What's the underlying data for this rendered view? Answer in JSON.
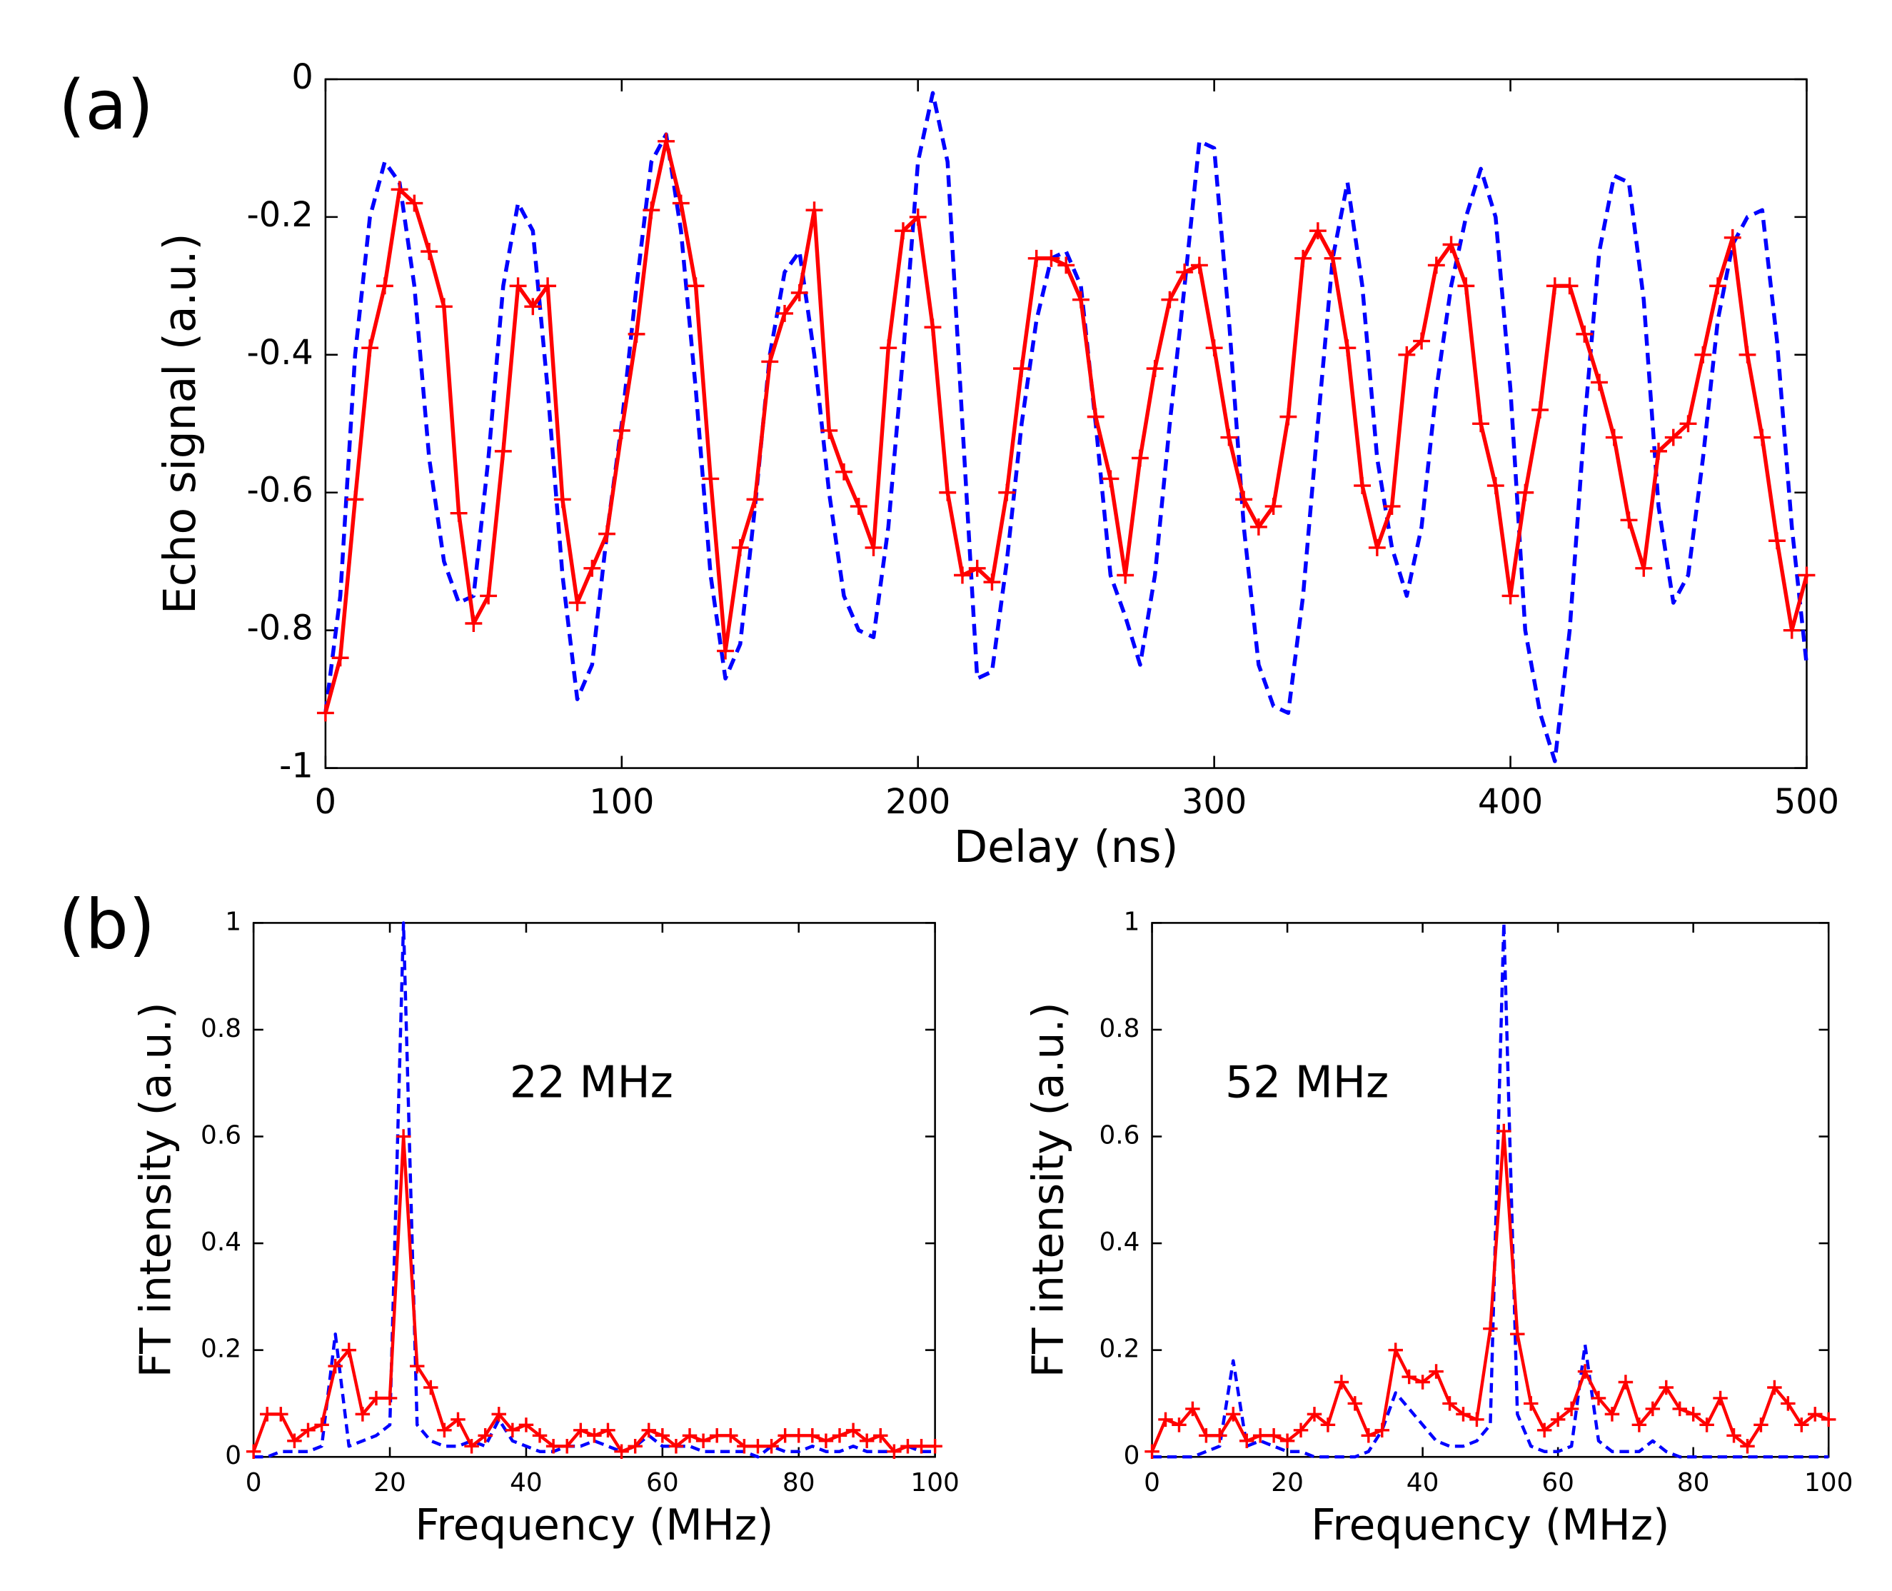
{
  "chart_data": [
    {
      "type": "line",
      "panel_label": "(a)",
      "x_label": "Delay (ns)",
      "y_label": "Echo signal (a.u.)",
      "xlim": [
        0,
        500
      ],
      "ylim": [
        -1,
        0
      ],
      "xticks": [
        0,
        100,
        200,
        300,
        400,
        500
      ],
      "yticks": [
        -1,
        -0.8,
        -0.6,
        -0.4,
        -0.2,
        0
      ],
      "x": [
        0,
        5,
        10,
        15,
        20,
        25,
        30,
        35,
        40,
        45,
        50,
        55,
        60,
        65,
        70,
        75,
        80,
        85,
        90,
        95,
        100,
        105,
        110,
        115,
        120,
        125,
        130,
        135,
        140,
        145,
        150,
        155,
        160,
        165,
        170,
        175,
        180,
        185,
        190,
        195,
        200,
        205,
        210,
        215,
        220,
        225,
        230,
        235,
        240,
        245,
        250,
        255,
        260,
        265,
        270,
        275,
        280,
        285,
        290,
        295,
        300,
        305,
        310,
        315,
        320,
        325,
        330,
        335,
        340,
        345,
        350,
        355,
        360,
        365,
        370,
        375,
        380,
        385,
        390,
        395,
        400,
        405,
        410,
        415,
        420,
        425,
        430,
        435,
        440,
        445,
        450,
        455,
        460,
        465,
        470,
        475,
        480,
        485,
        490,
        495,
        500
      ],
      "series": [
        {
          "color": "#0000ff",
          "line_style": "dashed",
          "values": [
            -0.92,
            -0.75,
            -0.4,
            -0.2,
            -0.12,
            -0.15,
            -0.3,
            -0.55,
            -0.7,
            -0.76,
            -0.75,
            -0.55,
            -0.3,
            -0.18,
            -0.22,
            -0.45,
            -0.72,
            -0.9,
            -0.85,
            -0.66,
            -0.5,
            -0.3,
            -0.12,
            -0.08,
            -0.22,
            -0.45,
            -0.72,
            -0.87,
            -0.82,
            -0.62,
            -0.4,
            -0.28,
            -0.25,
            -0.4,
            -0.6,
            -0.75,
            -0.8,
            -0.81,
            -0.65,
            -0.4,
            -0.12,
            -0.02,
            -0.12,
            -0.5,
            -0.87,
            -0.86,
            -0.7,
            -0.5,
            -0.35,
            -0.26,
            -0.25,
            -0.3,
            -0.5,
            -0.72,
            -0.78,
            -0.85,
            -0.72,
            -0.5,
            -0.3,
            -0.09,
            -0.1,
            -0.35,
            -0.65,
            -0.85,
            -0.91,
            -0.92,
            -0.75,
            -0.5,
            -0.26,
            -0.15,
            -0.3,
            -0.55,
            -0.68,
            -0.75,
            -0.65,
            -0.45,
            -0.3,
            -0.2,
            -0.13,
            -0.2,
            -0.45,
            -0.8,
            -0.92,
            -0.99,
            -0.8,
            -0.5,
            -0.25,
            -0.14,
            -0.15,
            -0.32,
            -0.62,
            -0.76,
            -0.72,
            -0.55,
            -0.35,
            -0.24,
            -0.2,
            -0.19,
            -0.38,
            -0.65,
            -0.85
          ]
        },
        {
          "color": "#ff0000",
          "line_style": "solid",
          "marker": "+",
          "values": [
            -0.92,
            -0.84,
            -0.61,
            -0.39,
            -0.3,
            -0.16,
            -0.18,
            -0.25,
            -0.33,
            -0.63,
            -0.79,
            -0.75,
            -0.54,
            -0.3,
            -0.33,
            -0.3,
            -0.61,
            -0.76,
            -0.71,
            -0.66,
            -0.51,
            -0.37,
            -0.19,
            -0.09,
            -0.18,
            -0.3,
            -0.58,
            -0.83,
            -0.68,
            -0.61,
            -0.41,
            -0.34,
            -0.31,
            -0.19,
            -0.51,
            -0.57,
            -0.62,
            -0.68,
            -0.39,
            -0.22,
            -0.2,
            -0.36,
            -0.6,
            -0.72,
            -0.71,
            -0.73,
            -0.6,
            -0.42,
            -0.26,
            -0.26,
            -0.27,
            -0.32,
            -0.49,
            -0.58,
            -0.72,
            -0.55,
            -0.42,
            -0.32,
            -0.28,
            -0.27,
            -0.39,
            -0.52,
            -0.61,
            -0.65,
            -0.62,
            -0.49,
            -0.26,
            -0.22,
            -0.26,
            -0.39,
            -0.59,
            -0.68,
            -0.62,
            -0.4,
            -0.38,
            -0.27,
            -0.24,
            -0.3,
            -0.5,
            -0.59,
            -0.75,
            -0.6,
            -0.48,
            -0.3,
            -0.3,
            -0.37,
            -0.44,
            -0.52,
            -0.64,
            -0.71,
            -0.54,
            -0.52,
            -0.5,
            -0.4,
            -0.3,
            -0.23,
            -0.4,
            -0.52,
            -0.67,
            -0.8,
            -0.72
          ]
        }
      ]
    },
    {
      "type": "line",
      "panel_label": "(b)",
      "x_label": "Frequency (MHz)",
      "y_label": "FT intensity (a.u.)",
      "xlim": [
        0,
        100
      ],
      "ylim": [
        0,
        1
      ],
      "xticks": [
        0,
        20,
        40,
        60,
        80,
        100
      ],
      "yticks": [
        0,
        0.2,
        0.4,
        0.6,
        0.8,
        1
      ],
      "annotations": [
        {
          "text": "22 MHz"
        }
      ],
      "x": [
        0,
        2,
        4,
        6,
        8,
        10,
        12,
        14,
        16,
        18,
        20,
        22,
        24,
        26,
        28,
        30,
        32,
        34,
        36,
        38,
        40,
        42,
        44,
        46,
        48,
        50,
        52,
        54,
        56,
        58,
        60,
        62,
        64,
        66,
        68,
        70,
        72,
        74,
        76,
        78,
        80,
        82,
        84,
        86,
        88,
        90,
        92,
        94,
        96,
        98,
        100
      ],
      "series": [
        {
          "color": "#0000ff",
          "line_style": "dashed",
          "values": [
            0,
            0,
            0.01,
            0.01,
            0.01,
            0.02,
            0.23,
            0.02,
            0.03,
            0.04,
            0.06,
            1.0,
            0.06,
            0.03,
            0.02,
            0.02,
            0.03,
            0.02,
            0.07,
            0.03,
            0.02,
            0.01,
            0.01,
            0.02,
            0.02,
            0.03,
            0.02,
            0.01,
            0.02,
            0.04,
            0.02,
            0.02,
            0.02,
            0.01,
            0.01,
            0.01,
            0.01,
            0,
            0.02,
            0.01,
            0.01,
            0.02,
            0.01,
            0.01,
            0.02,
            0.01,
            0.01,
            0.01,
            0.02,
            0.01,
            0.01
          ]
        },
        {
          "color": "#ff0000",
          "line_style": "solid",
          "marker": "+",
          "values": [
            0.01,
            0.08,
            0.08,
            0.03,
            0.05,
            0.06,
            0.17,
            0.2,
            0.08,
            0.11,
            0.11,
            0.6,
            0.17,
            0.13,
            0.05,
            0.07,
            0.02,
            0.04,
            0.08,
            0.05,
            0.06,
            0.04,
            0.02,
            0.02,
            0.05,
            0.04,
            0.05,
            0.01,
            0.02,
            0.05,
            0.04,
            0.02,
            0.04,
            0.03,
            0.04,
            0.04,
            0.02,
            0.02,
            0.02,
            0.04,
            0.04,
            0.04,
            0.03,
            0.04,
            0.05,
            0.03,
            0.04,
            0.01,
            0.02,
            0.02,
            0.02
          ]
        }
      ]
    },
    {
      "type": "line",
      "x_label": "Frequency (MHz)",
      "y_label": "FT intensity (a.u.)",
      "xlim": [
        0,
        100
      ],
      "ylim": [
        0,
        1
      ],
      "xticks": [
        0,
        20,
        40,
        60,
        80,
        100
      ],
      "yticks": [
        0,
        0.2,
        0.4,
        0.6,
        0.8,
        1
      ],
      "annotations": [
        {
          "text": "52 MHz"
        }
      ],
      "x": [
        0,
        2,
        4,
        6,
        8,
        10,
        12,
        14,
        16,
        18,
        20,
        22,
        24,
        26,
        28,
        30,
        32,
        34,
        36,
        38,
        40,
        42,
        44,
        46,
        48,
        50,
        52,
        54,
        56,
        58,
        60,
        62,
        64,
        66,
        68,
        70,
        72,
        74,
        76,
        78,
        80,
        82,
        84,
        86,
        88,
        90,
        92,
        94,
        96,
        98,
        100
      ],
      "series": [
        {
          "color": "#0000ff",
          "line_style": "dashed",
          "values": [
            0,
            0,
            0,
            0,
            0.01,
            0.02,
            0.18,
            0.02,
            0.03,
            0.02,
            0.01,
            0.01,
            0,
            0,
            0,
            0,
            0.01,
            0.05,
            0.12,
            0.09,
            0.06,
            0.03,
            0.02,
            0.02,
            0.03,
            0.06,
            1.0,
            0.08,
            0.02,
            0.01,
            0.01,
            0.02,
            0.21,
            0.03,
            0.01,
            0.01,
            0.01,
            0.03,
            0.01,
            0,
            0,
            0,
            0,
            0,
            0,
            0,
            0,
            0,
            0,
            0,
            0
          ]
        },
        {
          "color": "#ff0000",
          "line_style": "solid",
          "marker": "+",
          "values": [
            0.01,
            0.07,
            0.06,
            0.09,
            0.04,
            0.04,
            0.08,
            0.03,
            0.04,
            0.04,
            0.03,
            0.05,
            0.08,
            0.06,
            0.14,
            0.1,
            0.04,
            0.05,
            0.2,
            0.15,
            0.14,
            0.16,
            0.1,
            0.08,
            0.07,
            0.24,
            0.61,
            0.23,
            0.1,
            0.05,
            0.07,
            0.09,
            0.16,
            0.11,
            0.08,
            0.14,
            0.06,
            0.09,
            0.13,
            0.09,
            0.08,
            0.06,
            0.11,
            0.04,
            0.02,
            0.06,
            0.13,
            0.1,
            0.06,
            0.08,
            0.07
          ]
        }
      ]
    }
  ]
}
